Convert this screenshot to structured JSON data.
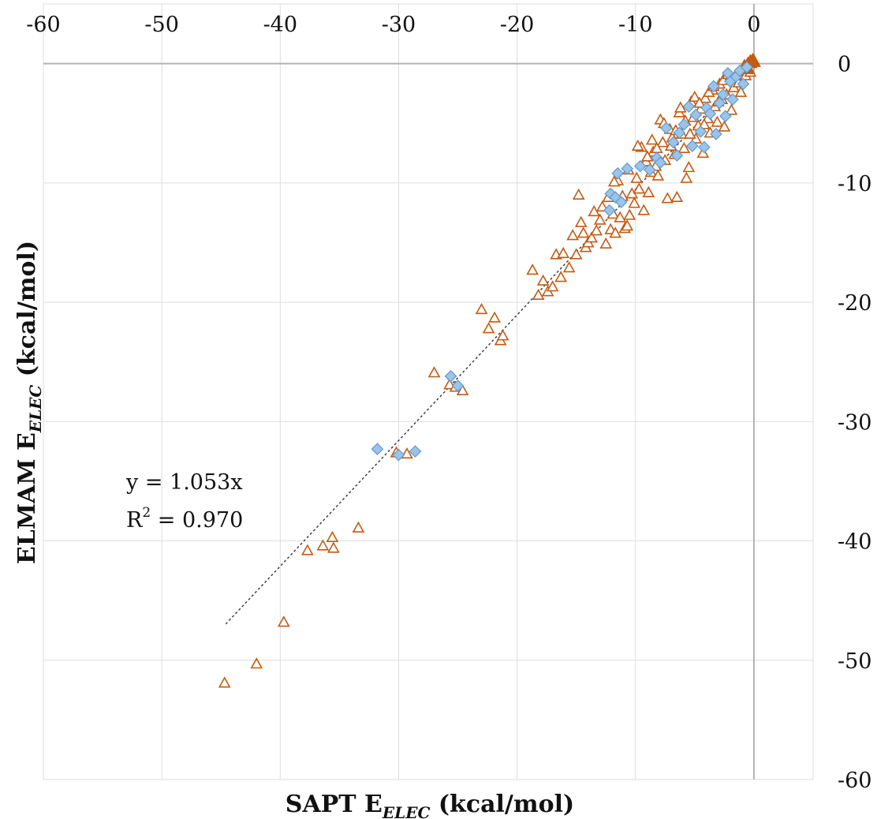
{
  "chart_data": {
    "type": "scatter",
    "title": "",
    "xlabel": {
      "main": "SAPT E",
      "sub": "ELEC",
      "tail": " (kcal/mol)"
    },
    "ylabel": {
      "main": "ELMAM E",
      "sub": "ELEC",
      "tail": " (kcal/mol)"
    },
    "xlim": [
      -60,
      5
    ],
    "ylim": [
      -60,
      5
    ],
    "x_ticks": [
      "-60",
      "-50",
      "-40",
      "-30",
      "-20",
      "-10",
      "0"
    ],
    "y_ticks": [
      "0",
      "-10",
      "-20",
      "-30",
      "-40",
      "-50",
      "-60"
    ],
    "x_axis_position": "top",
    "y_axis_position": "right",
    "grid": true,
    "legend": "none",
    "annotation": {
      "line1": "y = 1.053x",
      "line2_base": "R",
      "line2_sup": "2",
      "line2_tail": " = 0.970"
    },
    "trendline": {
      "slope": 1.053,
      "x_range": [
        -44.6,
        0
      ]
    },
    "colors": {
      "series_a": "#c55a11",
      "series_b": "#5b9bd5",
      "series_b_fill": "#9dc3e6"
    },
    "series": [
      {
        "marker": "open-triangle",
        "points": [
          [
            -44.7,
            -51.9
          ],
          [
            -42.0,
            -50.3
          ],
          [
            -39.7,
            -46.8
          ],
          [
            -37.7,
            -40.8
          ],
          [
            -36.4,
            -40.4
          ],
          [
            -35.6,
            -39.7
          ],
          [
            -35.5,
            -40.6
          ],
          [
            -33.4,
            -38.9
          ],
          [
            -30.2,
            -32.6
          ],
          [
            -29.3,
            -32.7
          ],
          [
            -27.0,
            -25.9
          ],
          [
            -25.7,
            -26.9
          ],
          [
            -25.2,
            -27.1
          ],
          [
            -24.6,
            -27.4
          ],
          [
            -23.0,
            -20.6
          ],
          [
            -22.4,
            -22.2
          ],
          [
            -21.9,
            -21.3
          ],
          [
            -21.4,
            -23.2
          ],
          [
            -21.2,
            -22.8
          ],
          [
            -18.7,
            -17.3
          ],
          [
            -18.2,
            -19.4
          ],
          [
            -17.8,
            -18.2
          ],
          [
            -17.4,
            -19.1
          ],
          [
            -17.0,
            -18.7
          ],
          [
            -16.7,
            -16.0
          ],
          [
            -16.3,
            -17.9
          ],
          [
            -16.1,
            -15.9
          ],
          [
            -15.6,
            -17.1
          ],
          [
            -15.3,
            -14.4
          ],
          [
            -15.0,
            -16.0
          ],
          [
            -14.8,
            -11.0
          ],
          [
            -14.6,
            -13.3
          ],
          [
            -14.4,
            -14.2
          ],
          [
            -14.2,
            -15.4
          ],
          [
            -14.0,
            -15.0
          ],
          [
            -13.7,
            -14.6
          ],
          [
            -13.5,
            -12.4
          ],
          [
            -13.3,
            -14.0
          ],
          [
            -13.0,
            -13.1
          ],
          [
            -12.8,
            -12.0
          ],
          [
            -12.5,
            -15.1
          ],
          [
            -12.3,
            -11.2
          ],
          [
            -12.1,
            -13.9
          ],
          [
            -11.9,
            -12.6
          ],
          [
            -11.7,
            -14.2
          ],
          [
            -11.5,
            -9.8
          ],
          [
            -11.3,
            -12.9
          ],
          [
            -11.1,
            -11.1
          ],
          [
            -10.9,
            -13.8
          ],
          [
            -10.7,
            -13.6
          ],
          [
            -10.5,
            -12.7
          ],
          [
            -10.3,
            -10.9
          ],
          [
            -10.1,
            -11.7
          ],
          [
            -9.9,
            -9.6
          ],
          [
            -9.7,
            -10.5
          ],
          [
            -9.5,
            -7.0
          ],
          [
            -9.3,
            -12.3
          ],
          [
            -9.1,
            -8.2
          ],
          [
            -8.9,
            -10.8
          ],
          [
            -8.7,
            -9.1
          ],
          [
            -8.5,
            -7.4
          ],
          [
            -8.3,
            -8.6
          ],
          [
            -8.1,
            -9.4
          ],
          [
            -7.9,
            -4.7
          ],
          [
            -7.7,
            -6.6
          ],
          [
            -7.5,
            -8.1
          ],
          [
            -7.3,
            -11.3
          ],
          [
            -7.1,
            -5.5
          ],
          [
            -6.9,
            -6.2
          ],
          [
            -6.7,
            -7.6
          ],
          [
            -6.5,
            -11.2
          ],
          [
            -6.3,
            -4.1
          ],
          [
            -6.1,
            -5.9
          ],
          [
            -5.9,
            -7.1
          ],
          [
            -5.7,
            -9.6
          ],
          [
            -5.5,
            -8.7
          ],
          [
            -5.3,
            -3.2
          ],
          [
            -5.1,
            -4.5
          ],
          [
            -4.9,
            -6.3
          ],
          [
            -4.7,
            -5.2
          ],
          [
            -4.5,
            -3.8
          ],
          [
            -4.3,
            -7.5
          ],
          [
            -4.1,
            -2.9
          ],
          [
            -3.9,
            -4.6
          ],
          [
            -3.7,
            -5.8
          ],
          [
            -3.5,
            -2.2
          ],
          [
            -3.3,
            -3.6
          ],
          [
            -3.1,
            -4.9
          ],
          [
            -2.9,
            -1.7
          ],
          [
            -2.7,
            -3.0
          ],
          [
            -2.5,
            -5.3
          ],
          [
            -2.3,
            -2.6
          ],
          [
            -2.1,
            -1.3
          ],
          [
            -1.9,
            -3.9
          ],
          [
            -1.7,
            -2.0
          ],
          [
            -1.5,
            -0.9
          ],
          [
            -1.3,
            -1.6
          ],
          [
            -1.1,
            -2.4
          ],
          [
            -0.9,
            -0.6
          ],
          [
            -0.7,
            -1.0
          ],
          [
            -0.5,
            -0.3
          ],
          [
            -0.3,
            -0.7
          ],
          [
            -11.8,
            -9.9
          ],
          [
            -10.6,
            -8.9
          ],
          [
            -9.8,
            -6.9
          ],
          [
            -9.0,
            -7.8
          ],
          [
            -8.6,
            -6.4
          ],
          [
            -8.2,
            -7.1
          ],
          [
            -7.6,
            -5.0
          ],
          [
            -7.0,
            -6.9
          ],
          [
            -6.6,
            -5.6
          ],
          [
            -6.2,
            -3.7
          ],
          [
            -5.8,
            -4.8
          ],
          [
            -5.4,
            -5.9
          ],
          [
            -5.0,
            -2.8
          ],
          [
            -4.6,
            -3.3
          ],
          [
            -4.2,
            -5.1
          ],
          [
            -3.8,
            -2.4
          ],
          [
            -3.4,
            -1.9
          ],
          [
            -3.0,
            -3.2
          ],
          [
            -2.6,
            -1.4
          ],
          [
            -2.2,
            -0.9
          ]
        ]
      },
      {
        "marker": "filled-triangle",
        "points": [
          [
            -0.1,
            0.4
          ],
          [
            -0.3,
            0.3
          ],
          [
            -0.5,
            0.1
          ],
          [
            -0.2,
            0.0
          ],
          [
            0.0,
            0.3
          ],
          [
            -0.6,
            -0.2
          ],
          [
            -0.8,
            -0.1
          ],
          [
            -0.4,
            -0.5
          ],
          [
            0.1,
            0.1
          ]
        ]
      },
      {
        "marker": "diamond",
        "points": [
          [
            -31.8,
            -32.3
          ],
          [
            -30.0,
            -32.8
          ],
          [
            -28.6,
            -32.5
          ],
          [
            -25.6,
            -26.2
          ],
          [
            -25.0,
            -27.0
          ],
          [
            -12.2,
            -12.3
          ],
          [
            -12.1,
            -10.9
          ],
          [
            -11.7,
            -11.2
          ],
          [
            -11.5,
            -9.2
          ],
          [
            -11.2,
            -11.6
          ],
          [
            -10.7,
            -8.8
          ],
          [
            -9.6,
            -8.6
          ],
          [
            -8.8,
            -8.9
          ],
          [
            -8.2,
            -7.9
          ],
          [
            -7.9,
            -8.3
          ],
          [
            -7.4,
            -5.4
          ],
          [
            -6.8,
            -6.6
          ],
          [
            -6.5,
            -7.7
          ],
          [
            -6.3,
            -5.8
          ],
          [
            -5.9,
            -5.1
          ],
          [
            -5.5,
            -3.6
          ],
          [
            -5.2,
            -6.9
          ],
          [
            -4.9,
            -4.3
          ],
          [
            -4.5,
            -5.7
          ],
          [
            -4.2,
            -7.0
          ],
          [
            -4.0,
            -3.7
          ],
          [
            -3.7,
            -4.2
          ],
          [
            -3.4,
            -1.9
          ],
          [
            -3.2,
            -5.9
          ],
          [
            -2.9,
            -3.3
          ],
          [
            -2.6,
            -2.6
          ],
          [
            -2.4,
            -4.4
          ],
          [
            -2.2,
            -0.8
          ],
          [
            -2.0,
            -1.5
          ],
          [
            -1.8,
            -3.0
          ],
          [
            -1.5,
            -1.1
          ],
          [
            -1.2,
            -0.6
          ],
          [
            -0.9,
            -1.7
          ],
          [
            -0.6,
            -0.3
          ]
        ]
      }
    ]
  }
}
